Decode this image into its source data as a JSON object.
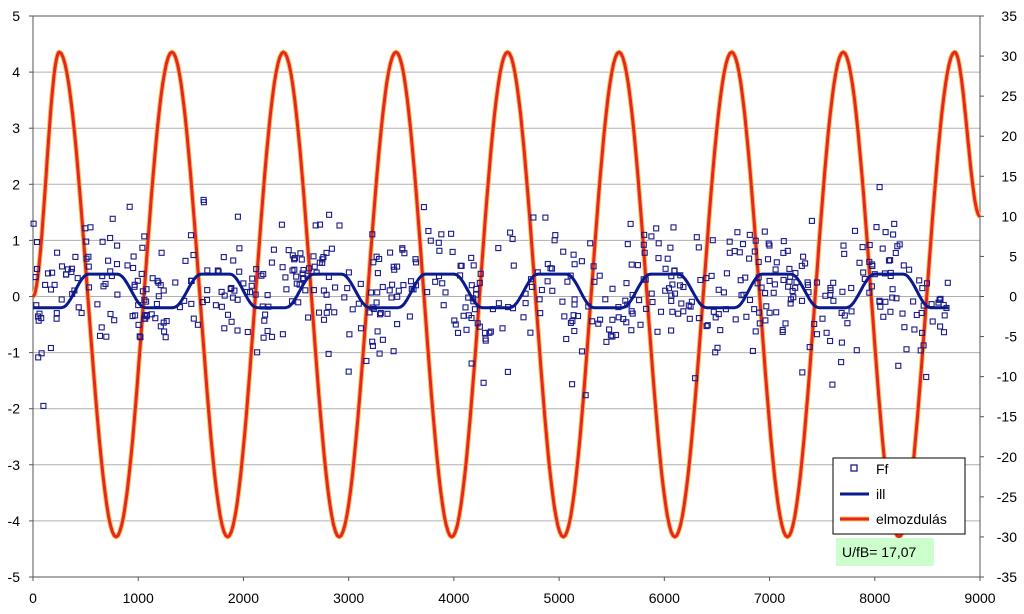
{
  "chart_data": {
    "type": "line",
    "title": "",
    "xlabel": "",
    "ylabel": "",
    "y2label": "",
    "xlim": [
      0,
      9000
    ],
    "ylim": [
      -5,
      5
    ],
    "y2lim": [
      -35,
      35
    ],
    "x_ticks": [
      "0",
      "1000",
      "2000",
      "3000",
      "4000",
      "5000",
      "6000",
      "7000",
      "8000",
      "9000"
    ],
    "y_ticks": [
      "5",
      "4",
      "3",
      "2",
      "1",
      "0",
      "-1",
      "-2",
      "-3",
      "-4",
      "-5"
    ],
    "y2_ticks": [
      "35",
      "30",
      "25",
      "20",
      "15",
      "10",
      "5",
      "0",
      "-5",
      "-10",
      "-15",
      "-20",
      "-25",
      "-30",
      "-35"
    ],
    "grid": true,
    "legend_position": "bottom-right",
    "series": [
      {
        "name": "Ff",
        "kind": "scatter",
        "axis": "left",
        "color": "#1a1a8c",
        "marker": "hollow-square",
        "x_range": [
          0,
          8700
        ],
        "period": 1066,
        "mean_amplitude": 0.3,
        "spread_sd": 0.55,
        "point_count": 600
      },
      {
        "name": "ill",
        "kind": "line",
        "axis": "left",
        "color": "#0a1a8c",
        "x": [
          0,
          270,
          530,
          800,
          1070,
          1330,
          1600,
          1870,
          2130,
          2400,
          2670,
          2930,
          3200,
          3470,
          3730,
          4000,
          4270,
          4530,
          4800,
          5070,
          5330,
          5600,
          5870,
          6130,
          6400,
          6670,
          6930,
          7200,
          7470,
          7730,
          8000,
          8270,
          8530,
          8700
        ],
        "y": [
          -0.2,
          -0.2,
          0.4,
          0.4,
          -0.2,
          -0.2,
          0.4,
          0.4,
          -0.2,
          -0.2,
          0.4,
          0.4,
          -0.2,
          -0.2,
          0.4,
          0.4,
          -0.2,
          -0.2,
          0.4,
          0.4,
          -0.2,
          -0.2,
          0.4,
          0.4,
          -0.2,
          -0.2,
          0.4,
          0.4,
          -0.2,
          -0.2,
          0.4,
          0.4,
          -0.2,
          -0.2
        ]
      },
      {
        "name": "elmozdulás",
        "kind": "line",
        "axis": "right",
        "color": "#e8232b",
        "x": [
          0,
          250,
          790,
          1320,
          1850,
          2380,
          2910,
          3450,
          3980,
          4510,
          5040,
          5570,
          6100,
          6640,
          7170,
          7700,
          8230,
          8760,
          9000
        ],
        "y": [
          0,
          30.5,
          -30,
          30.5,
          -30,
          30.5,
          -30,
          30.5,
          -30,
          30.5,
          -30,
          30.5,
          -30,
          30.5,
          -30,
          30.5,
          -30,
          30.5,
          10
        ]
      }
    ],
    "annotation": "U/fB= 17,07"
  },
  "colors": {
    "grid": "#b0b0b0",
    "axis": "#555555",
    "ff": "#1a1a8c",
    "ill": "#0a1a8c",
    "elmozdulas": "#e8232b",
    "elmozdulas_edge": "#f2c94c",
    "annotation_bg": "#ccffcc"
  }
}
